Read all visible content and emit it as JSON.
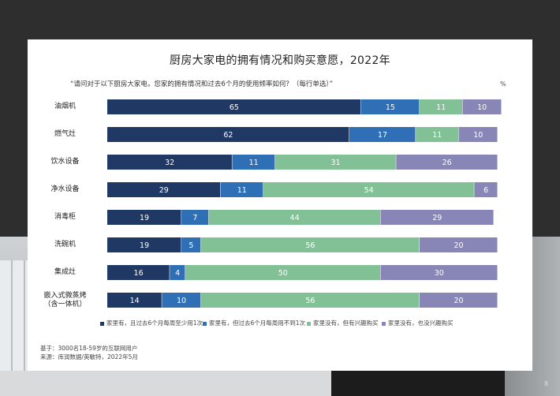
{
  "colors": {
    "s1": "#1f3864",
    "s2": "#2e6fb6",
    "s3": "#82c096",
    "s4": "#8886b7"
  },
  "chart_data": {
    "type": "bar",
    "orientation": "horizontal",
    "stacked": true,
    "title": "厨房大家电的拥有情况和购买意愿，2022年",
    "subtitle": "“请问对于以下厨房大家电，您家的拥有情况和过去6个月的使用频率如何？（每行单选）”",
    "unit_label": "%",
    "categories": [
      "油烟机",
      "燃气灶",
      "饮水设备",
      "净水设备",
      "消毒柜",
      "洗碗机",
      "集成灶",
      "嵌入式微蒸烤\n（含一体机）"
    ],
    "series": [
      {
        "name": "家里有，且过去6个月每周至少用1次",
        "values": [
          65,
          62,
          32,
          29,
          19,
          19,
          16,
          14
        ]
      },
      {
        "name": "家里有，但过去6个月每周用不到1次",
        "values": [
          15,
          17,
          11,
          11,
          7,
          5,
          4,
          10
        ]
      },
      {
        "name": "家里没有，但有兴趣购买",
        "values": [
          11,
          11,
          31,
          54,
          44,
          56,
          50,
          56
        ]
      },
      {
        "name": "家里没有，也没兴趣购买",
        "values": [
          10,
          10,
          26,
          6,
          29,
          20,
          30,
          20
        ]
      }
    ],
    "xlim": [
      0,
      100
    ],
    "grid": false,
    "legend_position": "bottom"
  },
  "footnote": {
    "base": "基于：3000名18-59岁的互联网用户",
    "source": "来源：库润数据/英敏特，2022年5月"
  },
  "page_number": "8"
}
